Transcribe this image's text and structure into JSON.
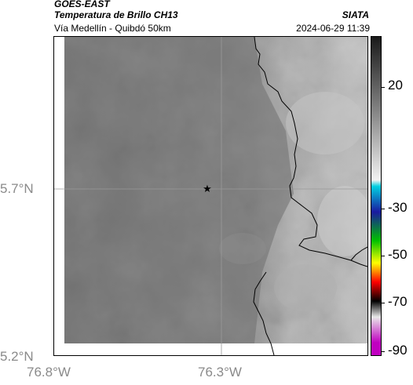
{
  "header": {
    "title_main": "GOES-EAST",
    "title_sub": "Temperatura de Brillo CH13",
    "subtitle": "Vía Medellín - Quibdó 50km",
    "agency": "SIATA",
    "timestamp": "2024-06-29 11:39"
  },
  "map": {
    "lat_ticks": [
      "5.7°N",
      "5.2°N"
    ],
    "lon_ticks": [
      "76.8°W",
      "76.3°W"
    ],
    "marker_icon": "star-icon",
    "colors": {
      "cloud_dark": "#6f6f6f",
      "cloud_light": "#c8c8c8",
      "border_line": "#000000"
    }
  },
  "colorbar": {
    "labels": [
      "20",
      "-30",
      "-50",
      "-70",
      "-90"
    ],
    "colors": [
      "#1a1a1a",
      "#f2f2f2",
      "#00cfe0",
      "#1a1aa0",
      "#00c000",
      "#ffff00",
      "#ff0000",
      "#000000",
      "#e8e8e8",
      "#c000c0"
    ]
  }
}
